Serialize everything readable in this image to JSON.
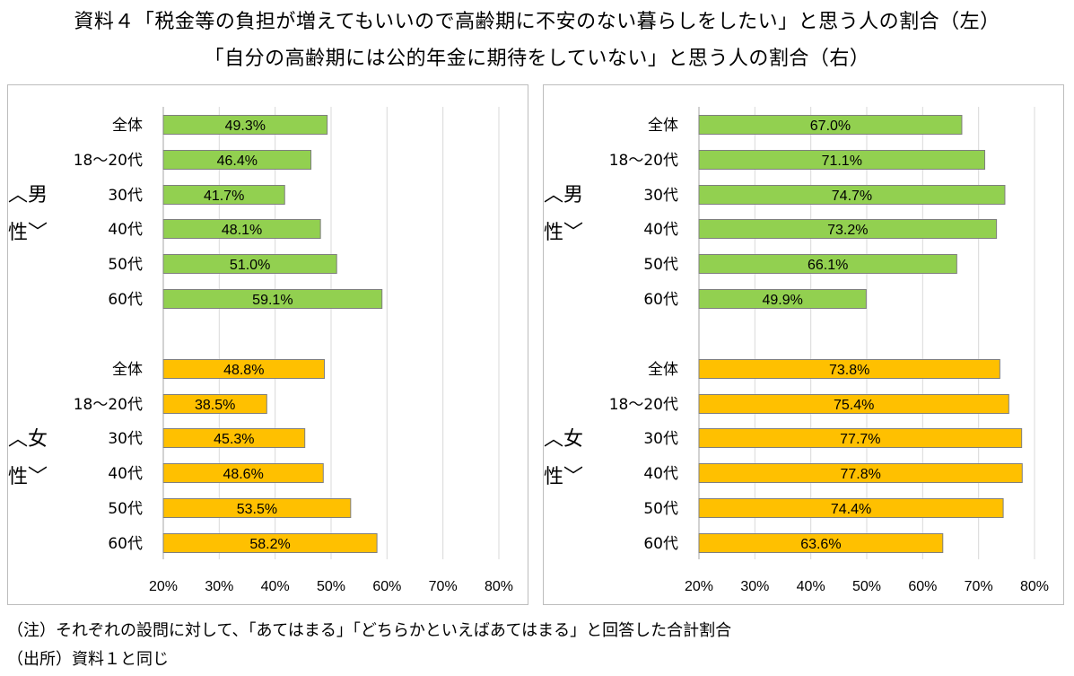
{
  "title": {
    "line1": "資料４「税金等の負担が増えてもいいので高齢期に不安のない暮らしをしたい」と思う人の割合（左）",
    "line2": "「自分の高齢期には公的年金に期待をしていない」と思う人の割合（右）"
  },
  "notes": {
    "note1": "（注）それぞれの設問に対して、「あてはまる」「どちらかといえばあてはまる」と回答した合計割合",
    "note2": "（出所）資料１と同じ"
  },
  "colors": {
    "male_bar": "#92d050",
    "female_bar": "#ffc000",
    "bar_border": "#7f7f7f",
    "grid": "#d9d9d9"
  },
  "chart_data": [
    {
      "type": "bar",
      "orientation": "horizontal",
      "title": "「税金等の負担が増えてもいいので高齢期に不安のない暮らしをしたい」と思う人の割合（左）",
      "xlim": [
        20,
        80
      ],
      "x_ticks": [
        "20%",
        "30%",
        "40%",
        "50%",
        "60%",
        "70%",
        "80%"
      ],
      "grid": true,
      "groups": [
        {
          "label_top": "︿男",
          "label_bottom": "性﹀",
          "series_name": "男性",
          "categories": [
            "全体",
            "18～20代",
            "30代",
            "40代",
            "50代",
            "60代"
          ],
          "values": [
            49.3,
            46.4,
            41.7,
            48.1,
            51.0,
            59.1
          ],
          "data_labels": [
            "49.3%",
            "46.4%",
            "41.7%",
            "48.1%",
            "51.0%",
            "59.1%"
          ]
        },
        {
          "label_top": "︿女",
          "label_bottom": "性﹀",
          "series_name": "女性",
          "categories": [
            "全体",
            "18～20代",
            "30代",
            "40代",
            "50代",
            "60代"
          ],
          "values": [
            48.8,
            38.5,
            45.3,
            48.6,
            53.5,
            58.2
          ],
          "data_labels": [
            "48.8%",
            "38.5%",
            "45.3%",
            "48.6%",
            "53.5%",
            "58.2%"
          ]
        }
      ]
    },
    {
      "type": "bar",
      "orientation": "horizontal",
      "title": "「自分の高齢期には公的年金に期待をしていない」と思う人の割合（右）",
      "xlim": [
        20,
        80
      ],
      "x_ticks": [
        "20%",
        "30%",
        "40%",
        "50%",
        "60%",
        "70%",
        "80%"
      ],
      "grid": true,
      "groups": [
        {
          "label_top": "︿男",
          "label_bottom": "性﹀",
          "series_name": "男性",
          "categories": [
            "全体",
            "18～20代",
            "30代",
            "40代",
            "50代",
            "60代"
          ],
          "values": [
            67.0,
            71.1,
            74.7,
            73.2,
            66.1,
            49.9
          ],
          "data_labels": [
            "67.0%",
            "71.1%",
            "74.7%",
            "73.2%",
            "66.1%",
            "49.9%"
          ]
        },
        {
          "label_top": "︿女",
          "label_bottom": "性﹀",
          "series_name": "女性",
          "categories": [
            "全体",
            "18～20代",
            "30代",
            "40代",
            "50代",
            "60代"
          ],
          "values": [
            73.8,
            75.4,
            77.7,
            77.8,
            74.4,
            63.6
          ],
          "data_labels": [
            "73.8%",
            "75.4%",
            "77.7%",
            "77.8%",
            "74.4%",
            "63.6%"
          ]
        }
      ]
    }
  ]
}
